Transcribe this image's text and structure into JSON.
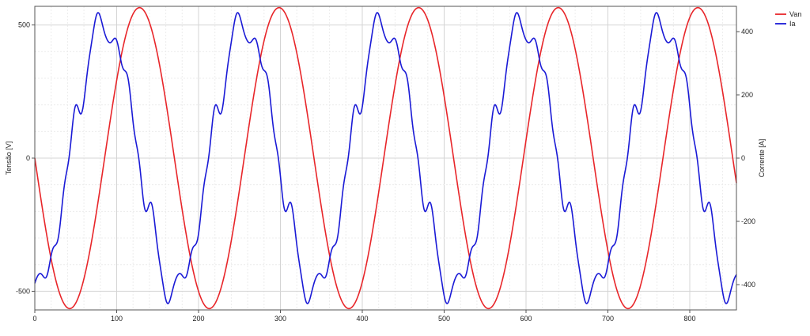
{
  "chart_data": {
    "type": "line",
    "x_range": [
      0,
      857
    ],
    "x_ticks": [
      0,
      100,
      200,
      300,
      400,
      500,
      600,
      700,
      800
    ],
    "y_left": {
      "label": "Tensão [V]",
      "range": [
        -570,
        570
      ],
      "ticks": [
        -500,
        0,
        500
      ]
    },
    "y_right": {
      "label": "Corrente [A]",
      "range": [
        -480,
        480
      ],
      "ticks": [
        -400,
        -200,
        0,
        200,
        400
      ]
    },
    "grid": true,
    "legend_position": "top-right",
    "series": [
      {
        "name": "Van",
        "axis": "left",
        "color": "#e8262a",
        "model": {
          "kind": "sine",
          "amplitude": 565,
          "period": 170.5,
          "phase_deg": 180,
          "offset": 0
        }
      },
      {
        "name": "Ia",
        "axis": "right",
        "color": "#1a1ad6",
        "model": {
          "kind": "sine_harmonics",
          "period": 170.5,
          "terms": [
            {
              "order": 1,
              "amplitude": 420,
              "phase_deg": -90
            },
            {
              "order": 5,
              "amplitude": 42,
              "phase_deg": 0
            },
            {
              "order": 7,
              "amplitude": 24,
              "phase_deg": 90
            },
            {
              "order": 11,
              "amplitude": 14,
              "phase_deg": 0
            },
            {
              "order": 13,
              "amplitude": 10,
              "phase_deg": 180
            }
          ]
        }
      }
    ]
  }
}
